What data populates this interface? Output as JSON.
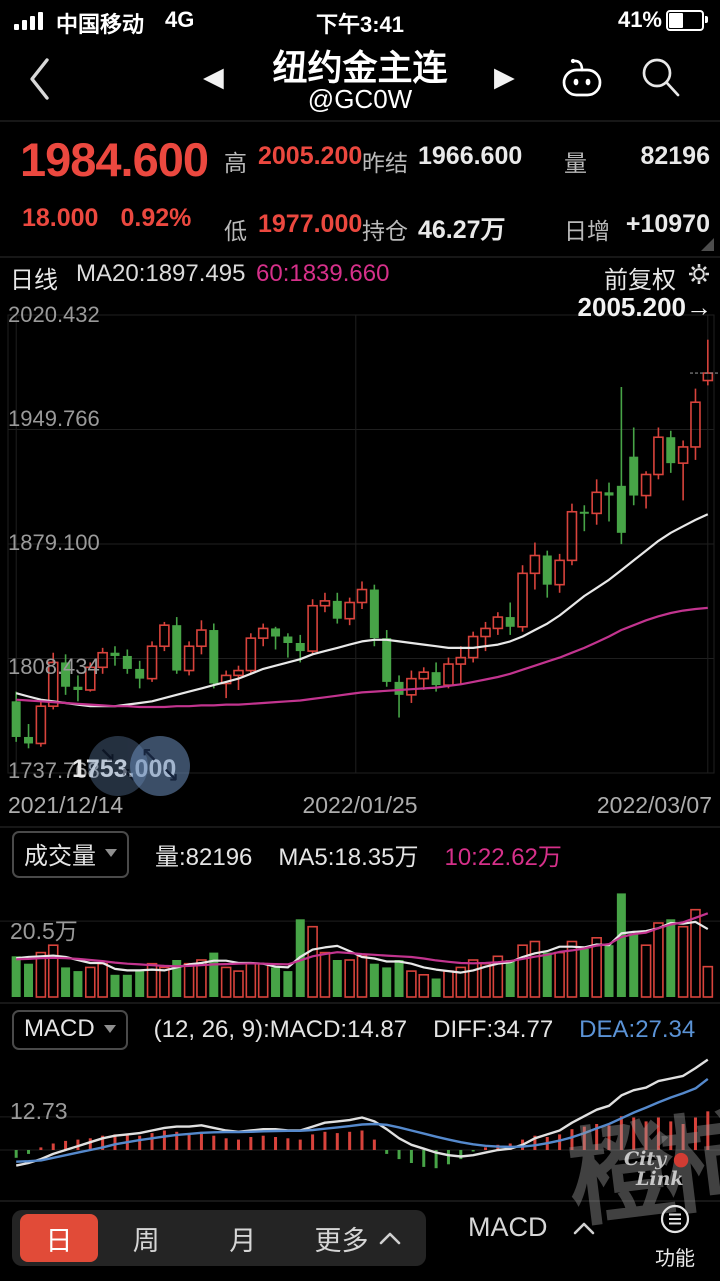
{
  "status_bar": {
    "carrier": "中国移动",
    "network": "4G",
    "time": "下午3:41",
    "battery_percent": "41%"
  },
  "title_bar": {
    "title": "纽约金主连",
    "subtitle": "@GC0W"
  },
  "icons": {
    "prev": "◀",
    "next": "▶",
    "zoom_in_tl": "↖",
    "zoom_in_br": "↘",
    "zoom_out_tl": "↘",
    "zoom_out_br": "↖"
  },
  "quote": {
    "last": "1984.600",
    "change": "18.000",
    "change_pct": "0.92%",
    "high_label": "高",
    "high": "2005.200",
    "low_label": "低",
    "low": "1977.000",
    "prev_settle_label": "昨结",
    "prev_settle": "1966.600",
    "open_interest_label": "持仓",
    "open_interest": "46.27万",
    "volume_label": "量",
    "volume": "82196",
    "daily_increase_label": "日增",
    "daily_increase": "+10970"
  },
  "chart_header": {
    "period": "日线",
    "ma20_text": "MA20:1897.495",
    "ma60_text": "60:1839.660",
    "adjust_label": "前复权"
  },
  "main_chart": {
    "y_labels": [
      "2020.432",
      "1949.766",
      "1879.100",
      "1808.434",
      "1737.768"
    ],
    "x_labels": [
      "2021/12/14",
      "2022/01/25",
      "2022/03/07"
    ],
    "high_annotation": "2005.200→",
    "low_annotation": "1753.000"
  },
  "volume_pane": {
    "selector": "成交量",
    "vol_text": "量:82196",
    "ma5_text": "MA5:18.35万",
    "ma10_text": "10:22.62万",
    "y_label": "20.5万"
  },
  "macd_pane": {
    "selector": "MACD",
    "params_text": "(12, 26, 9):MACD:14.87",
    "diff_text": "DIFF:34.77",
    "dea_text": "DEA:27.34",
    "y_label": "12.73"
  },
  "bottom_bar": {
    "tab_day": "日",
    "tab_week": "周",
    "tab_month": "月",
    "tab_more": "更多",
    "indicator": "MACD",
    "function_label": "功能"
  },
  "watermark": {
    "text": "橙柿",
    "sub_line1": "City",
    "sub_line2": "Link"
  },
  "colors": {
    "up": "#d8433c",
    "down": "#47a447",
    "ma20": "#e8e8e8",
    "ma60": "#c2348f",
    "diff": "#e0e0e0",
    "dea": "#5589cc",
    "grid": "#1f1f1f",
    "accent": "#eb483f",
    "magenta_text": "#d6308a",
    "blue_text": "#5b93d6",
    "tab_active": "#e14b38"
  },
  "chart_data": {
    "type": "candlestick",
    "title": "纽约金主连 @GC0W 日线",
    "x_labels": [
      "2021/12/14",
      "2022/01/25",
      "2022/03/07"
    ],
    "price_axis": {
      "ticks": [
        2020.432,
        1949.766,
        1879.1,
        1808.434,
        1737.768
      ]
    },
    "last_price": 1984.6,
    "candles": [
      [
        1782,
        1788,
        1757,
        1760
      ],
      [
        1760,
        1768,
        1753,
        1756
      ],
      [
        1756,
        1783,
        1754,
        1779
      ],
      [
        1779,
        1812,
        1777,
        1806
      ],
      [
        1806,
        1811,
        1786,
        1791
      ],
      [
        1791,
        1798,
        1782,
        1789
      ],
      [
        1789,
        1806,
        1788,
        1803
      ],
      [
        1803,
        1815,
        1799,
        1812
      ],
      [
        1812,
        1816,
        1804,
        1810
      ],
      [
        1810,
        1814,
        1799,
        1802
      ],
      [
        1802,
        1807,
        1790,
        1796
      ],
      [
        1796,
        1819,
        1794,
        1816
      ],
      [
        1816,
        1831,
        1813,
        1829
      ],
      [
        1829,
        1834,
        1799,
        1801
      ],
      [
        1801,
        1819,
        1798,
        1816
      ],
      [
        1816,
        1832,
        1811,
        1826
      ],
      [
        1826,
        1830,
        1790,
        1793
      ],
      [
        1793,
        1801,
        1784,
        1798
      ],
      [
        1798,
        1804,
        1789,
        1801
      ],
      [
        1801,
        1824,
        1799,
        1821
      ],
      [
        1821,
        1830,
        1816,
        1827
      ],
      [
        1827,
        1828,
        1814,
        1822
      ],
      [
        1822,
        1824,
        1809,
        1818
      ],
      [
        1818,
        1823,
        1806,
        1813
      ],
      [
        1813,
        1845,
        1811,
        1841
      ],
      [
        1841,
        1849,
        1837,
        1844
      ],
      [
        1844,
        1849,
        1830,
        1833
      ],
      [
        1833,
        1846,
        1829,
        1843
      ],
      [
        1843,
        1856,
        1839,
        1851
      ],
      [
        1851,
        1854,
        1816,
        1821
      ],
      [
        1821,
        1826,
        1791,
        1794
      ],
      [
        1794,
        1798,
        1772,
        1786
      ],
      [
        1786,
        1801,
        1781,
        1796
      ],
      [
        1796,
        1803,
        1789,
        1800
      ],
      [
        1800,
        1806,
        1788,
        1792
      ],
      [
        1792,
        1809,
        1790,
        1805
      ],
      [
        1805,
        1816,
        1793,
        1809
      ],
      [
        1809,
        1825,
        1806,
        1822
      ],
      [
        1822,
        1831,
        1813,
        1827
      ],
      [
        1827,
        1837,
        1823,
        1834
      ],
      [
        1834,
        1843,
        1823,
        1828
      ],
      [
        1828,
        1866,
        1825,
        1861
      ],
      [
        1861,
        1880,
        1851,
        1872
      ],
      [
        1872,
        1875,
        1846,
        1854
      ],
      [
        1854,
        1873,
        1849,
        1869
      ],
      [
        1869,
        1904,
        1866,
        1899
      ],
      [
        1899,
        1903,
        1887,
        1898
      ],
      [
        1898,
        1919,
        1891,
        1911
      ],
      [
        1911,
        1917,
        1893,
        1909
      ],
      [
        1915,
        1976,
        1879,
        1886
      ],
      [
        1933,
        1951,
        1903,
        1909
      ],
      [
        1909,
        1924,
        1901,
        1922
      ],
      [
        1922,
        1951,
        1919,
        1945
      ],
      [
        1945,
        1949,
        1923,
        1929
      ],
      [
        1929,
        1943,
        1906,
        1939
      ],
      [
        1939,
        1975,
        1931,
        1966.6
      ],
      [
        1980,
        2005.2,
        1977,
        1984.6
      ]
    ],
    "ma20": [
      1787,
      1785,
      1783,
      1782,
      1781,
      1780,
      1779,
      1779,
      1779,
      1780,
      1781,
      1782,
      1784,
      1786,
      1788,
      1790,
      1792,
      1794,
      1796,
      1799,
      1802,
      1804,
      1806,
      1808,
      1811,
      1813,
      1815,
      1817,
      1819,
      1820,
      1820,
      1819,
      1818,
      1817,
      1816,
      1815,
      1815,
      1815,
      1816,
      1817,
      1819,
      1822,
      1826,
      1830,
      1835,
      1841,
      1847,
      1852,
      1857,
      1863,
      1869,
      1875,
      1881,
      1886,
      1890,
      1894,
      1897.5
    ],
    "ma60": [
      1783,
      1782.5,
      1782,
      1781.5,
      1781,
      1780.5,
      1780,
      1779.5,
      1779,
      1779,
      1778.5,
      1778.5,
      1778.5,
      1779,
      1779,
      1779.5,
      1779.5,
      1780,
      1780,
      1780.5,
      1781,
      1781.5,
      1782,
      1782.5,
      1783.5,
      1784.5,
      1785.5,
      1786.5,
      1787.5,
      1788,
      1788.5,
      1789,
      1789.5,
      1790,
      1790.5,
      1791.5,
      1792.5,
      1794,
      1795.5,
      1797,
      1799,
      1801.5,
      1804,
      1806.5,
      1809,
      1812,
      1815,
      1818.5,
      1822,
      1826,
      1829,
      1832,
      1834.5,
      1836.5,
      1838,
      1839,
      1839.66
    ],
    "volume_axis": {
      "tick": 20.5,
      "unit": "万"
    },
    "volumes": [
      11,
      9,
      12,
      14,
      8,
      7,
      8,
      9,
      6,
      6,
      7,
      9,
      8,
      10,
      9,
      10,
      12,
      8,
      7,
      9,
      9,
      8,
      7,
      21,
      19,
      12,
      10,
      10,
      11,
      9,
      8,
      10,
      7,
      6,
      5,
      7,
      8,
      10,
      9,
      11,
      10,
      14,
      15,
      12,
      12,
      15,
      13,
      16,
      14,
      28,
      17,
      14,
      20,
      21,
      19,
      23.6,
      8.2
    ],
    "vol_ma5": [
      10.5,
      10.8,
      11,
      11.2,
      10.8,
      10,
      9.2,
      9.2,
      7.6,
      7.2,
      7.2,
      7.4,
      7.2,
      8,
      8.8,
      9.2,
      9.8,
      9.8,
      9.2,
      9.2,
      9,
      8.2,
      8,
      10.8,
      12.8,
      13.4,
      13.8,
      12.4,
      10.8,
      10.4,
      9.6,
      9.6,
      9,
      8,
      7.4,
      7,
      6.6,
      7.2,
      8.2,
      9,
      9.4,
      10.8,
      11.8,
      12.4,
      13.6,
      13.6,
      13.4,
      14.2,
      14,
      17.2,
      17.6,
      17.8,
      18.6,
      20,
      19.8,
      20.3,
      18.35
    ],
    "vol_ma10": [
      10.2,
      10.3,
      10.5,
      10.6,
      10.5,
      10.3,
      10,
      9.7,
      9.3,
      9,
      8.8,
      8.6,
      8.4,
      8.3,
      8.4,
      8.6,
      8.8,
      8.9,
      9,
      9.1,
      9,
      8.9,
      8.8,
      9.9,
      11,
      11.6,
      12.1,
      11.9,
      11.6,
      11.4,
      11.2,
      11,
      10.8,
      10.4,
      9.9,
      9.5,
      9.2,
      9.1,
      9.2,
      9.4,
      9.7,
      10.3,
      10.9,
      11.4,
      12.2,
      12.6,
      13.1,
      13.9,
      14.3,
      16.2,
      17,
      17.4,
      18.6,
      19.6,
      20.2,
      21.4,
      22.62
    ],
    "macd_axis": {
      "tick": 12.73
    },
    "macd_hist": [
      -3,
      -1.5,
      1,
      2.5,
      3.5,
      4,
      4.5,
      5.5,
      6,
      6,
      5.5,
      6.5,
      7.5,
      7,
      6.5,
      7,
      5.5,
      4.5,
      4,
      5,
      5.5,
      5,
      4.5,
      4,
      6,
      7,
      6.5,
      7,
      7.5,
      4,
      -1.5,
      -3.5,
      -5,
      -6.5,
      -7,
      -5.5,
      -3.5,
      -0.5,
      1,
      2,
      2.5,
      4,
      5.5,
      5,
      6,
      8,
      9,
      10,
      9.5,
      13,
      12.5,
      11,
      12.5,
      11,
      10,
      12.5,
      14.87
    ],
    "macd_diff": [
      -6,
      -5,
      -3.5,
      -1.5,
      0,
      1.5,
      3,
      4.5,
      5.5,
      6,
      6.5,
      7.5,
      8.5,
      9,
      9,
      9.5,
      8.5,
      7.5,
      7,
      7.5,
      8,
      8,
      7.5,
      7.5,
      9,
      10.5,
      11,
      11.5,
      12.5,
      11,
      8,
      4.5,
      2,
      0.5,
      -1,
      -2,
      -2.5,
      -2,
      -1,
      0,
      0.5,
      2,
      4.5,
      6,
      7.5,
      10.5,
      13,
      15.5,
      17,
      21,
      23,
      24,
      26.5,
      27.5,
      28.5,
      31.5,
      34.77
    ],
    "macd_dea": [
      -4.5,
      -4.3,
      -4,
      -3,
      -2,
      -1,
      0,
      1,
      2.2,
      3,
      3.8,
      4.5,
      5.2,
      5.8,
      6.2,
      6.6,
      6.8,
      6.9,
      6.9,
      7,
      7.2,
      7.3,
      7.4,
      7.4,
      7.7,
      8.2,
      8.7,
      9.2,
      9.8,
      10,
      9.7,
      8.7,
      7.5,
      6.3,
      5.1,
      4,
      3,
      2.2,
      1.6,
      1.3,
      1.2,
      1.3,
      1.8,
      2.6,
      3.6,
      4.9,
      6.5,
      8.3,
      10,
      12.2,
      14.4,
      16.3,
      18.3,
      20.2,
      21.8,
      23.7,
      27.34
    ]
  }
}
